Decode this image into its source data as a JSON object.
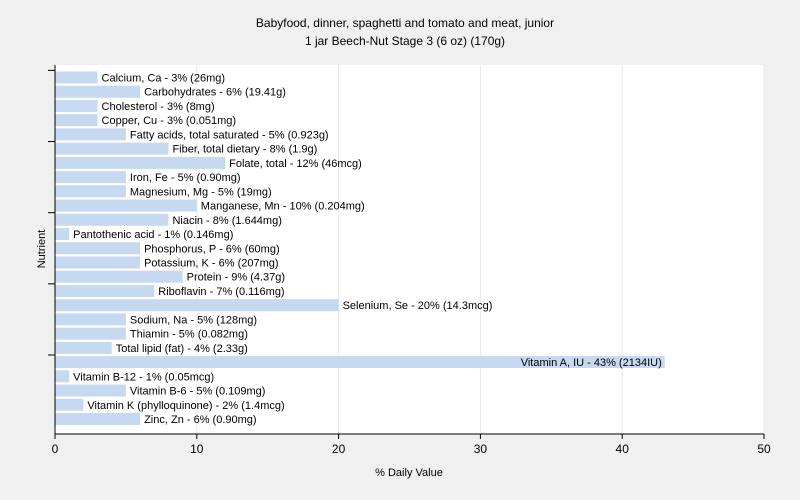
{
  "chart_data": {
    "type": "bar",
    "orientation": "horizontal",
    "title": "Babyfood, dinner, spaghetti and tomato and meat, junior",
    "subtitle": "1 jar Beech-Nut Stage 3 (6 oz) (170g)",
    "xlabel": "% Daily Value",
    "ylabel": "Nutrient",
    "xlim": [
      0,
      50
    ],
    "xticks": [
      0,
      10,
      20,
      30,
      40,
      50
    ],
    "grid": true,
    "bar_color": "#c6d9f1",
    "categories": [
      "Calcium, Ca",
      "Carbohydrates",
      "Cholesterol",
      "Copper, Cu",
      "Fatty acids, total saturated",
      "Fiber, total dietary",
      "Folate, total",
      "Iron, Fe",
      "Magnesium, Mg",
      "Manganese, Mn",
      "Niacin",
      "Pantothenic acid",
      "Phosphorus, P",
      "Potassium, K",
      "Protein",
      "Riboflavin",
      "Selenium, Se",
      "Sodium, Na",
      "Thiamin",
      "Total lipid (fat)",
      "Vitamin A, IU",
      "Vitamin B-12",
      "Vitamin B-6",
      "Vitamin K (phylloquinone)",
      "Zinc, Zn"
    ],
    "values": [
      3,
      6,
      3,
      3,
      5,
      8,
      12,
      5,
      5,
      10,
      8,
      1,
      6,
      6,
      9,
      7,
      20,
      5,
      5,
      4,
      43,
      1,
      5,
      2,
      6
    ],
    "labels": [
      "Calcium, Ca - 3% (26mg)",
      "Carbohydrates - 6% (19.41g)",
      "Cholesterol - 3% (8mg)",
      "Copper, Cu - 3% (0.051mg)",
      "Fatty acids, total saturated - 5% (0.923g)",
      "Fiber, total dietary - 8% (1.9g)",
      "Folate, total - 12% (46mcg)",
      "Iron, Fe - 5% (0.90mg)",
      "Magnesium, Mg - 5% (19mg)",
      "Manganese, Mn - 10% (0.204mg)",
      "Niacin - 8% (1.644mg)",
      "Pantothenic acid - 1% (0.146mg)",
      "Phosphorus, P - 6% (60mg)",
      "Potassium, K - 6% (207mg)",
      "Protein - 9% (4.37g)",
      "Riboflavin - 7% (0.116mg)",
      "Selenium, Se - 20% (14.3mcg)",
      "Sodium, Na - 5% (128mg)",
      "Thiamin - 5% (0.082mg)",
      "Total lipid (fat) - 4% (2.33g)",
      "Vitamin A, IU - 43% (2134IU)",
      "Vitamin B-12 - 1% (0.05mcg)",
      "Vitamin B-6 - 5% (0.109mg)",
      "Vitamin K (phylloquinone) - 2% (1.4mcg)",
      "Zinc, Zn - 6% (0.90mg)"
    ]
  }
}
